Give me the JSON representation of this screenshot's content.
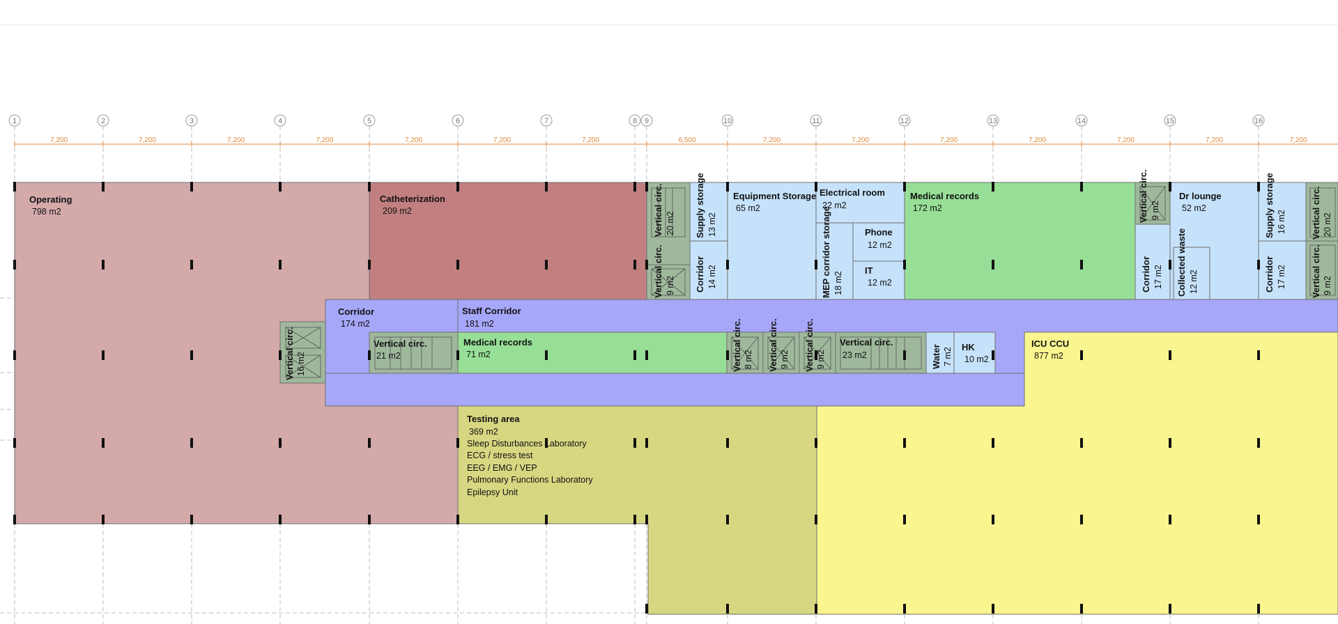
{
  "grid": {
    "axes": [
      "1",
      "2",
      "3",
      "4",
      "5",
      "6",
      "7",
      "8",
      "9",
      "10",
      "11",
      "12",
      "13",
      "14",
      "15",
      "16"
    ],
    "spacings": [
      "7,200",
      "7,200",
      "7,200",
      "7,200",
      "7,200",
      "7,200",
      "7,200",
      "6,500",
      "7,200",
      "7,200",
      "7,200",
      "7,200",
      "7,200",
      "7,200",
      "7,200"
    ]
  },
  "colors": {
    "operating": "#d4a9aa",
    "catheterization": "#c17f80",
    "corridor": "#a7a7f9",
    "service": "#c6e2fb",
    "medical_records": "#97df97",
    "vertical_circ": "#9fb89c",
    "testing": "#d7d782",
    "icu": "#fbf590",
    "dimension": "#e08a3c",
    "gridline": "#bdbdbd"
  },
  "rooms": {
    "operating": {
      "name": "Operating",
      "area": "798 m2"
    },
    "catheterization": {
      "name": "Catheterization",
      "area": "209 m2"
    },
    "vc_a": {
      "name": "Vertical circ.",
      "area": "20 m2"
    },
    "vc_b": {
      "name": "Vertical circ.",
      "area": "9 m2"
    },
    "supply_1": {
      "name": "Supply storage",
      "area": "13 m2"
    },
    "corridor_14": {
      "name": "Corridor",
      "area": "14 m2"
    },
    "equipment": {
      "name": "Equipment Storage",
      "area": "65 m2"
    },
    "electrical": {
      "name": "Electrical room",
      "area": "22 m2"
    },
    "mep": {
      "name": "MEP corridor storage",
      "area": "18 m2"
    },
    "phone": {
      "name": "Phone",
      "area": "12 m2"
    },
    "it": {
      "name": "IT",
      "area": "12 m2"
    },
    "medrec_top": {
      "name": "Medical records",
      "area": "172 m2"
    },
    "vc_c": {
      "name": "Vertical circ.",
      "area": "9 m2"
    },
    "corridor_17a": {
      "name": "Corridor",
      "area": "17 m2"
    },
    "collected_waste": {
      "name": "Collected waste",
      "area": "12 m2"
    },
    "dr_lounge": {
      "name": "Dr lounge",
      "area": "52 m2"
    },
    "supply_2": {
      "name": "Supply storage",
      "area": "16 m2"
    },
    "corridor_17b": {
      "name": "Corridor",
      "area": "17 m2"
    },
    "vc_d": {
      "name": "Vertical circ.",
      "area": "20 m2"
    },
    "vc_e": {
      "name": "Vertical circ.",
      "area": "9 m2"
    },
    "corridor_174": {
      "name": "Corridor",
      "area": "174 m2"
    },
    "staff_corridor": {
      "name": "Staff Corridor",
      "area": "181 m2"
    },
    "vc_f": {
      "name": "Vertical circ.",
      "area": "16 m2"
    },
    "vc_g": {
      "name": "Vertical circ.",
      "area": "21 m2"
    },
    "medrec_mid": {
      "name": "Medical records",
      "area": "71 m2"
    },
    "vc_h": {
      "name": "Vertical circ.",
      "area": "8 m2"
    },
    "vc_i": {
      "name": "Vertical circ.",
      "area": "9 m2"
    },
    "vc_j": {
      "name": "Vertical circ.",
      "area": "9 m2"
    },
    "vc_k": {
      "name": "Vertical circ.",
      "area": "23 m2"
    },
    "water": {
      "name": "Water",
      "area": "7 m2"
    },
    "hk": {
      "name": "HK",
      "area": "10 m2"
    },
    "icu": {
      "name": "ICU CCU",
      "area": "877 m2"
    },
    "testing": {
      "name": "Testing area",
      "area": "369 m2",
      "notes": [
        "Sleep Disturbances Laboratory",
        "ECG / stress test",
        "EEG / EMG / VEP",
        "Pulmonary Functions Laboratory",
        "Epilepsy Unit"
      ]
    }
  }
}
